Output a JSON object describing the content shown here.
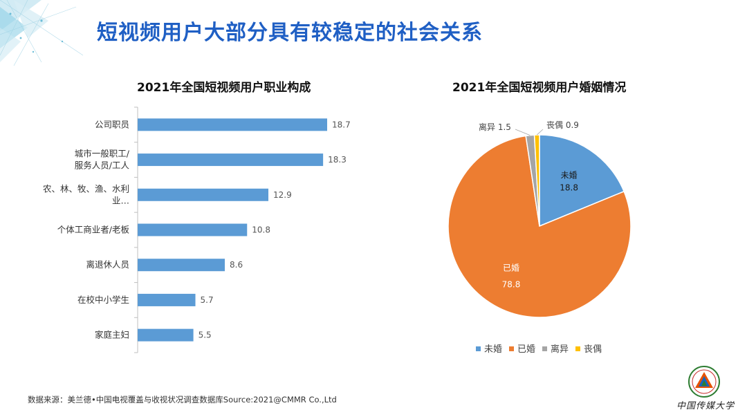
{
  "page": {
    "title": "短视频用户大部分具有较稳定的社会关系",
    "source": "数据来源：美兰德•中国电视覆盖与收视状况调查数据库Source:2021@CMMR Co.,Ltd"
  },
  "logo": {
    "name": "中国传媒大学"
  },
  "colors": {
    "bar": "#5b9bd5",
    "single": "#5b9bd5",
    "married": "#ed7d31",
    "divorced": "#a5a5a5",
    "widowed": "#ffc000",
    "title": "#1f5fc4"
  },
  "chart_data": [
    {
      "type": "bar",
      "orientation": "horizontal",
      "title": "2021年全国短视频用户职业构成",
      "categories": [
        [
          "公司职员"
        ],
        [
          "城市一般职工/",
          "服务人员/工人"
        ],
        [
          "农、林、牧、渔、水利",
          "业…"
        ],
        [
          "个体工商业者/老板"
        ],
        [
          "离退休人员"
        ],
        [
          "在校中小学生"
        ],
        [
          "家庭主妇"
        ]
      ],
      "values": [
        18.7,
        18.3,
        12.9,
        10.8,
        8.6,
        5.7,
        5.5
      ],
      "value_labels": [
        "18.7",
        "18.3",
        "12.9",
        "10.8",
        "8.6",
        "5.7",
        "5.5"
      ],
      "xlim": [
        0,
        20
      ]
    },
    {
      "type": "pie",
      "title": "2021年全国短视频用户婚姻情况",
      "slices": [
        {
          "name": "未婚",
          "value": 18.8,
          "label": "18.8",
          "color": "#5b9bd5"
        },
        {
          "name": "已婚",
          "value": 78.8,
          "label": "78.8",
          "color": "#ed7d31"
        },
        {
          "name": "离异",
          "value": 1.5,
          "label": "1.5",
          "color": "#a5a5a5"
        },
        {
          "name": "丧偶",
          "value": 0.9,
          "label": "0.9",
          "color": "#ffc000"
        }
      ],
      "legend": [
        "未婚",
        "已婚",
        "离异",
        "丧偶"
      ],
      "legend_position": "bottom"
    }
  ]
}
